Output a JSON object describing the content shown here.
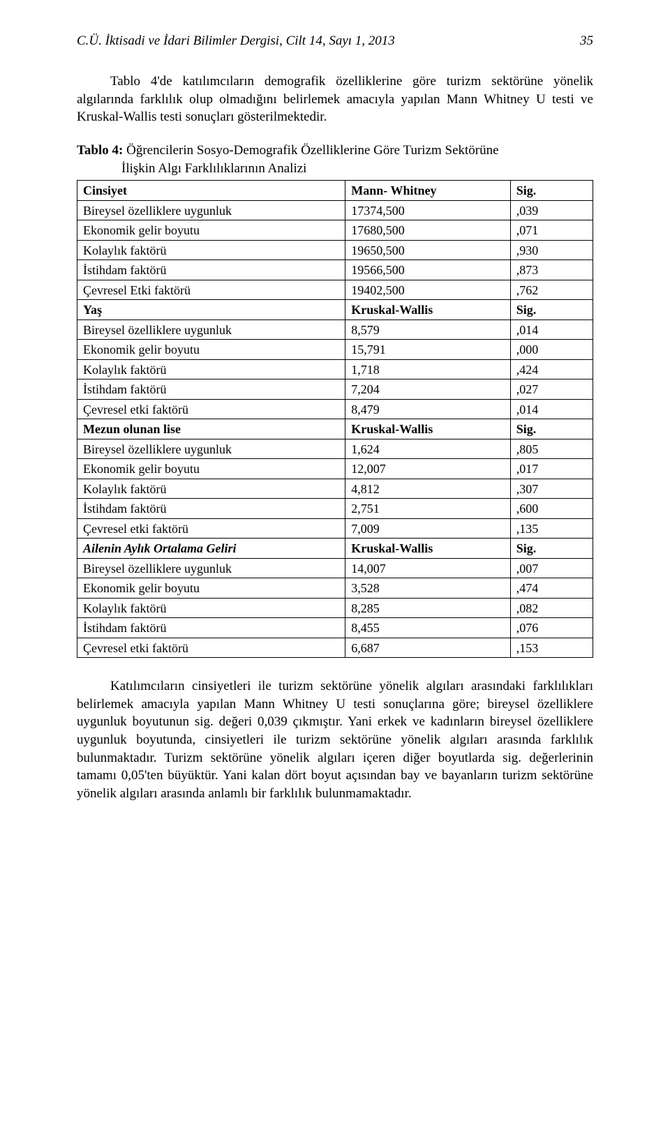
{
  "header": {
    "journal": "C.Ü. İktisadi ve İdari Bilimler Dergisi, Cilt 14, Sayı 1, 2013",
    "page": "35"
  },
  "intro": "Tablo 4'de katılımcıların demografik özelliklerine göre turizm sektörüne yönelik algılarında farklılık olup olmadığını belirlemek amacıyla yapılan Mann Whitney U testi ve  Kruskal-Wallis testi sonuçları gösterilmektedir.",
  "caption": {
    "lead": "Tablo 4:",
    "line1": " Öğrencilerin Sosyo-Demografik Özelliklerine Göre Turizm Sektörüne",
    "line2": "İlişkin Algı Farklılıklarının Analizi"
  },
  "table": {
    "sections": [
      {
        "header": {
          "c1": "Cinsiyet",
          "c2": "Mann- Whitney",
          "c3": "Sig.",
          "italic": false
        },
        "rows": [
          {
            "c1": "Bireysel özelliklere uygunluk",
            "c2": "17374,500",
            "c3": ",039"
          },
          {
            "c1": "Ekonomik gelir boyutu",
            "c2": "17680,500",
            "c3": ",071"
          },
          {
            "c1": "Kolaylık faktörü",
            "c2": "19650,500",
            "c3": ",930"
          },
          {
            "c1": "İstihdam faktörü",
            "c2": "19566,500",
            "c3": ",873"
          },
          {
            "c1": "Çevresel Etki faktörü",
            "c2": "19402,500",
            "c3": ",762"
          }
        ]
      },
      {
        "header": {
          "c1": "Yaş",
          "c2": "Kruskal-Wallis",
          "c3": "Sig.",
          "italic": false
        },
        "rows": [
          {
            "c1": "Bireysel özelliklere uygunluk",
            "c2": "8,579",
            "c3": ",014"
          },
          {
            "c1": "Ekonomik gelir boyutu",
            "c2": "15,791",
            "c3": ",000"
          },
          {
            "c1": "Kolaylık faktörü",
            "c2": "1,718",
            "c3": ",424"
          },
          {
            "c1": "İstihdam faktörü",
            "c2": "7,204",
            "c3": ",027"
          },
          {
            "c1": "Çevresel etki faktörü",
            "c2": "8,479",
            "c3": ",014"
          }
        ]
      },
      {
        "header": {
          "c1": "Mezun olunan lise",
          "c2": "Kruskal-Wallis",
          "c3": "Sig.",
          "italic": false
        },
        "rows": [
          {
            "c1": "Bireysel özelliklere uygunluk",
            "c2": "1,624",
            "c3": ",805"
          },
          {
            "c1": "Ekonomik gelir boyutu",
            "c2": "12,007",
            "c3": ",017"
          },
          {
            "c1": "Kolaylık faktörü",
            "c2": "4,812",
            "c3": ",307"
          },
          {
            "c1": "İstihdam faktörü",
            "c2": "2,751",
            "c3": ",600"
          },
          {
            "c1": "Çevresel etki faktörü",
            "c2": "7,009",
            "c3": ",135"
          }
        ]
      },
      {
        "header": {
          "c1": "Ailenin Aylık Ortalama Geliri",
          "c2": "Kruskal-Wallis",
          "c3": "Sig.",
          "italic": true
        },
        "rows": [
          {
            "c1": "Bireysel özelliklere uygunluk",
            "c2": "14,007",
            "c3": ",007"
          },
          {
            "c1": "Ekonomik gelir boyutu",
            "c2": "3,528",
            "c3": ",474"
          },
          {
            "c1": "Kolaylık faktörü",
            "c2": "8,285",
            "c3": ",082"
          },
          {
            "c1": "İstihdam faktörü",
            "c2": "8,455",
            "c3": ",076"
          },
          {
            "c1": "Çevresel etki faktörü",
            "c2": "6,687",
            "c3": ",153"
          }
        ]
      }
    ]
  },
  "conclusion": "Katılımcıların cinsiyetleri ile turizm sektörüne yönelik algıları arasındaki farklılıkları belirlemek amacıyla yapılan Mann Whitney U testi sonuçlarına göre; bireysel özelliklere uygunluk boyutunun sig. değeri 0,039 çıkmıştır. Yani erkek ve kadınların bireysel özelliklere uygunluk boyutunda, cinsiyetleri ile turizm sektörüne yönelik algıları arasında farklılık bulunmaktadır. Turizm sektörüne yönelik algıları içeren diğer boyutlarda sig. değerlerinin tamamı 0,05'ten büyüktür. Yani kalan dört boyut açısından bay ve bayanların turizm sektörüne yönelik algıları arasında anlamlı bir farklılık bulunmamaktadır."
}
